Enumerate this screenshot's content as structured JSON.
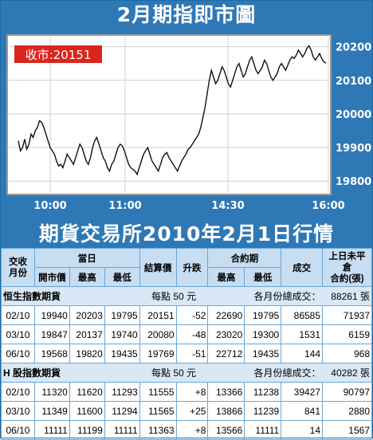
{
  "title": "2月期指即市圖",
  "subtitle": "期貨交易所2010年2月1日行情",
  "chart_data": {
    "type": "line",
    "close_label": "收市:20151",
    "x_ticks": [
      "10:00",
      "11:00",
      "14:30",
      "16:00"
    ],
    "y_ticks": [
      19800,
      19900,
      20000,
      20100,
      20200
    ],
    "ylim": [
      19765,
      20230
    ],
    "series": [
      {
        "values": [
          19920,
          19890,
          19900,
          19925,
          19895,
          19910,
          19940,
          19930,
          19950,
          19960,
          19980,
          19975,
          19960,
          19940,
          19920,
          19900,
          19890,
          19880,
          19860,
          19845,
          19850,
          19840,
          19860,
          19880,
          19870,
          19860,
          19850,
          19870,
          19890,
          19910,
          19900,
          19880,
          19860,
          19850,
          19870,
          19900,
          19920,
          19930,
          19910,
          19890,
          19870,
          19860,
          19840,
          19830,
          19850,
          19860,
          19880,
          19900,
          19910,
          19905,
          19890,
          19870,
          19850,
          19840,
          19835,
          19830,
          19820,
          19840,
          19860,
          19880,
          19890,
          19900,
          19880,
          19860,
          19850,
          19840,
          19830,
          19850,
          19870,
          19880,
          19885,
          19870,
          19860,
          19850,
          19840,
          19830,
          19845,
          19860,
          19870,
          19880,
          19895,
          19900,
          19910,
          19920,
          19930,
          19940,
          19960,
          19990,
          20020,
          20060,
          20100,
          20130,
          20110,
          20090,
          20100,
          20120,
          20140,
          20130,
          20110,
          20090,
          20080,
          20100,
          20120,
          20140,
          20150,
          20130,
          20110,
          20120,
          20140,
          20160,
          20170,
          20150,
          20130,
          20120,
          20130,
          20140,
          20160,
          20150,
          20130,
          20110,
          20100,
          20110,
          20120,
          20140,
          20150,
          20140,
          20130,
          20145,
          20160,
          20170,
          20165,
          20175,
          20190,
          20180,
          20170,
          20180,
          20195,
          20203,
          20190,
          20170,
          20160,
          20170,
          20180,
          20165,
          20155,
          20151
        ]
      }
    ]
  },
  "table": {
    "headers": {
      "h1": "交收\n月份",
      "h2_group": "當日",
      "h2a": "開市價",
      "h2b": "最高",
      "h2c": "最低",
      "h3": "結算價",
      "h4": "升跌",
      "h5_group": "合約期",
      "h5a": "最高",
      "h5b": "最低",
      "h6": "成交",
      "h7": "上日未平倉\n合約(張)"
    },
    "sections": [
      {
        "name": "恒生指數期貨",
        "unit": "每點 50 元",
        "total_label": "各月份總成交：",
        "total": "88261 張",
        "rows": [
          [
            "02/10",
            "19940",
            "20203",
            "19795",
            "20151",
            "-52",
            "22690",
            "19795",
            "86585",
            "71937"
          ],
          [
            "03/10",
            "19847",
            "20137",
            "19740",
            "20080",
            "-48",
            "23020",
            "19300",
            "1531",
            "6159"
          ],
          [
            "06/10",
            "19568",
            "19820",
            "19435",
            "19769",
            "-51",
            "22712",
            "19435",
            "144",
            "968"
          ]
        ]
      },
      {
        "name": "H 股指數期貨",
        "unit": "每點 50 元",
        "total_label": "各月份總成交：",
        "total": "40282 張",
        "rows": [
          [
            "02/10",
            "11320",
            "11620",
            "11293",
            "11555",
            "+8",
            "13366",
            "11238",
            "39427",
            "90797"
          ],
          [
            "03/10",
            "11349",
            "11600",
            "11294",
            "11565",
            "+25",
            "13866",
            "11239",
            "841",
            "2880"
          ],
          [
            "06/10",
            "11111",
            "11199",
            "11111",
            "11363",
            "+8",
            "13566",
            "11111",
            "14",
            "1567"
          ]
        ]
      }
    ]
  }
}
